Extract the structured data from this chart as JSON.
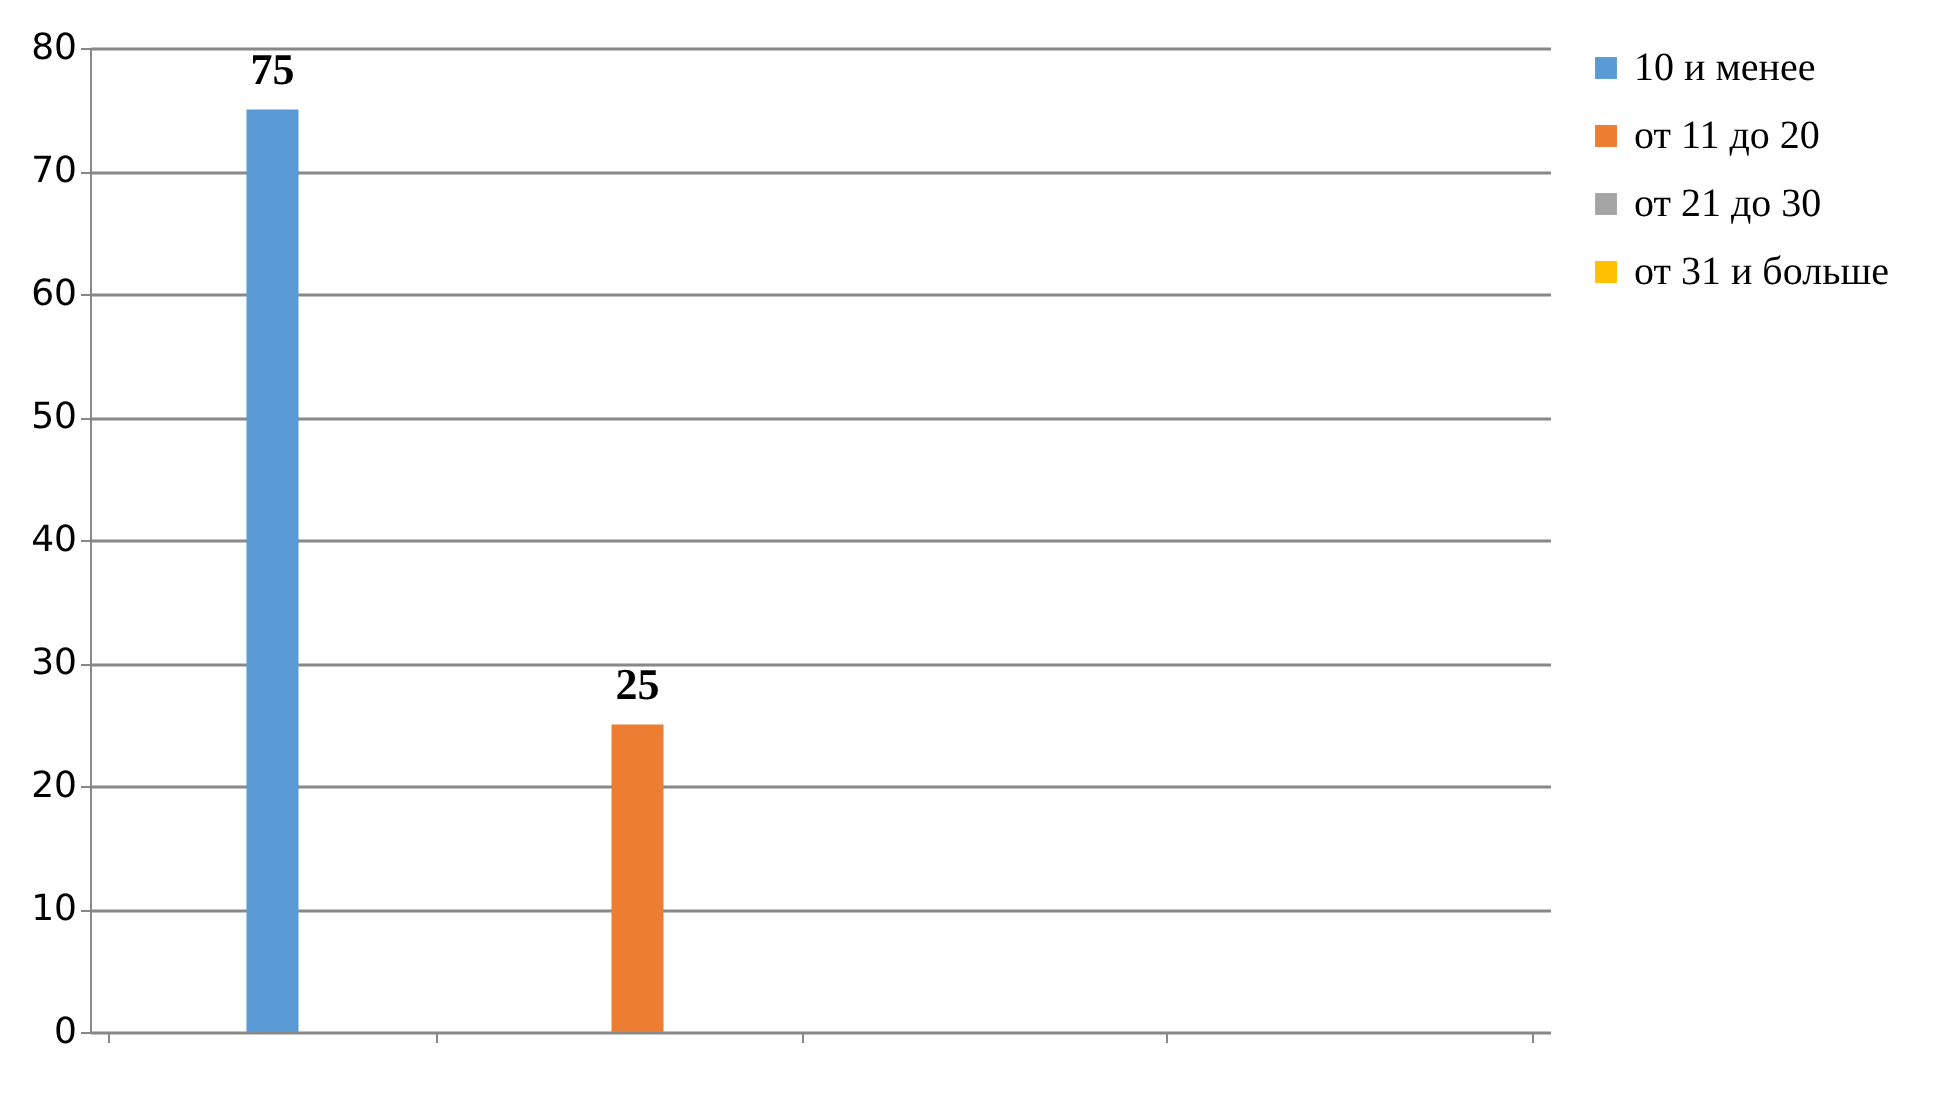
{
  "chart_data": {
    "type": "bar",
    "categories": [
      null,
      null,
      null,
      null
    ],
    "series": [
      {
        "name": "10 и менее",
        "color": "#5b9bd5",
        "values": [
          75,
          null,
          null,
          null
        ],
        "value_labels": [
          "75",
          null,
          null,
          null
        ]
      },
      {
        "name": "от 11 до 20",
        "color": "#ed7d31",
        "values": [
          null,
          25,
          null,
          null
        ],
        "value_labels": [
          null,
          "25",
          null,
          null
        ]
      },
      {
        "name": "от 21 до 30",
        "color": "#a5a5a5",
        "values": [
          null,
          null,
          0,
          null
        ],
        "value_labels": [
          null,
          null,
          null,
          null
        ]
      },
      {
        "name": "от 31 и больше",
        "color": "#ffc000",
        "values": [
          null,
          null,
          null,
          0
        ],
        "value_labels": [
          null,
          null,
          null,
          null
        ]
      }
    ],
    "ylim": [
      0,
      80
    ],
    "yticks": [
      0,
      10,
      20,
      30,
      40,
      50,
      60,
      70,
      80
    ],
    "grid": "y",
    "legend": "right",
    "tick_labels": "y"
  }
}
